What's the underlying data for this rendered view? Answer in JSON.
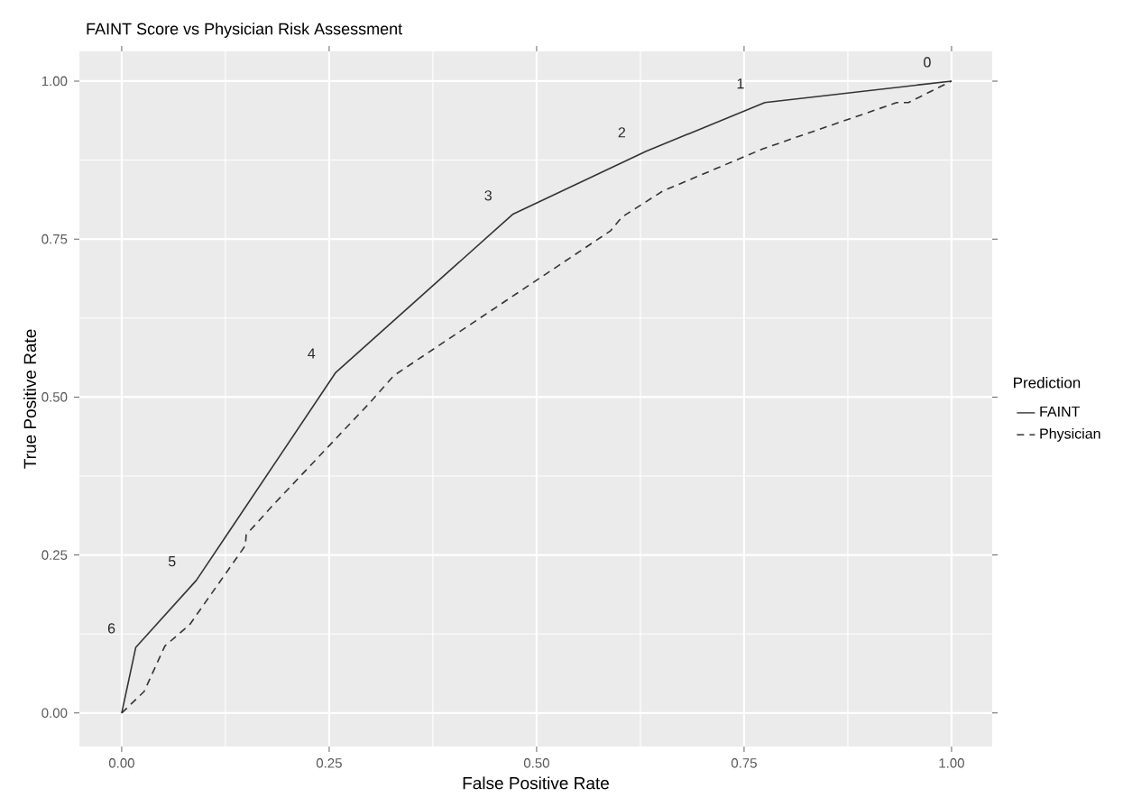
{
  "chart_data": {
    "type": "line",
    "title": "FAINT Score vs Physician Risk Assessment",
    "xlabel": "False Positive Rate",
    "ylabel": "True Positive Rate",
    "legend_title": "Prediction",
    "legend": "right",
    "grid": true,
    "xlim": [
      -0.051,
      1.049
    ],
    "ylim": [
      -0.053,
      1.047
    ],
    "xticks": [
      {
        "value": 0,
        "label": "0.00"
      },
      {
        "value": 0.25,
        "label": "0.25"
      },
      {
        "value": 0.5,
        "label": "0.50"
      },
      {
        "value": 0.75,
        "label": "0.75"
      },
      {
        "value": 1,
        "label": "1.00"
      }
    ],
    "yticks": [
      {
        "value": 0,
        "label": "0.00"
      },
      {
        "value": 0.25,
        "label": "0.25"
      },
      {
        "value": 0.5,
        "label": "0.50"
      },
      {
        "value": 0.75,
        "label": "0.75"
      },
      {
        "value": 1,
        "label": "1.00"
      }
    ],
    "series": [
      {
        "name": "FAINT",
        "color": "#333333",
        "line_style": "solid",
        "x": [
          0,
          0.017,
          0.09,
          0.258,
          0.471,
          0.632,
          0.775,
          1
        ],
        "values": [
          0,
          0.104,
          0.21,
          0.539,
          0.789,
          0.889,
          0.966,
          1
        ]
      },
      {
        "name": "Physician",
        "color": "#333333",
        "line_style": "dashed",
        "x": [
          0,
          0.027,
          0.052,
          0.082,
          0.149,
          0.15,
          0.183,
          0.299,
          0.328,
          0.589,
          0.603,
          0.652,
          0.773,
          0.934,
          0.948,
          1
        ],
        "values": [
          0,
          0.034,
          0.106,
          0.14,
          0.265,
          0.282,
          0.33,
          0.491,
          0.534,
          0.763,
          0.785,
          0.826,
          0.893,
          0.966,
          0.966,
          1
        ]
      }
    ],
    "annotations": [
      {
        "text": "6",
        "x": 0.017,
        "y": 0.104
      },
      {
        "text": "5",
        "x": 0.09,
        "y": 0.21
      },
      {
        "text": "4",
        "x": 0.258,
        "y": 0.539
      },
      {
        "text": "3",
        "x": 0.471,
        "y": 0.789
      },
      {
        "text": "2",
        "x": 0.632,
        "y": 0.889
      },
      {
        "text": "1",
        "x": 0.775,
        "y": 0.966
      },
      {
        "text": "0",
        "x": 1,
        "y": 1
      }
    ]
  }
}
